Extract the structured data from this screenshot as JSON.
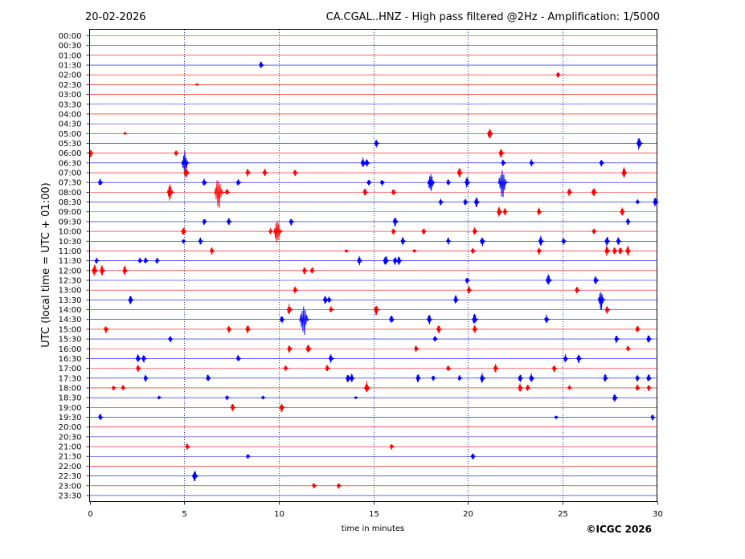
{
  "header": {
    "date": "20-02-2026",
    "title": "CA.CGAL..HNZ - High pass filtered @2Hz - Amplification: 1/5000"
  },
  "footer": {
    "copyright": "©ICGC 2026"
  },
  "colors": {
    "trace_odd": "#ff0000",
    "trace_even": "#0000ff",
    "grid": "#000080",
    "axis": "#000000"
  },
  "chart_data": {
    "type": "line",
    "title": "CA.CGAL..HNZ - High pass filtered @2Hz - Amplification: 1/5000",
    "xlabel": "time in minutes",
    "ylabel": "UTC (local time = UTC + 01:00)",
    "xlim": [
      0,
      30
    ],
    "x_ticks": [
      0,
      5,
      10,
      15,
      20,
      25,
      30
    ],
    "x_tick_labels": [
      "0",
      "5",
      "10",
      "15",
      "20",
      "25",
      "30"
    ],
    "vertical_grid": [
      5,
      10,
      15,
      20,
      25
    ],
    "grid_style": "dotted",
    "row_labels": [
      "00:00",
      "00:30",
      "01:00",
      "01:30",
      "02:00",
      "02:30",
      "03:00",
      "03:30",
      "04:00",
      "04:30",
      "05:00",
      "05:30",
      "06:00",
      "06:30",
      "07:00",
      "07:30",
      "08:00",
      "08:30",
      "09:00",
      "09:30",
      "10:00",
      "10:30",
      "11:00",
      "11:30",
      "12:00",
      "12:30",
      "13:00",
      "13:30",
      "14:00",
      "14:30",
      "15:00",
      "15:30",
      "16:00",
      "16:30",
      "17:00",
      "17:30",
      "18:00",
      "18:30",
      "19:00",
      "19:30",
      "20:00",
      "20:30",
      "21:00",
      "21:30",
      "22:00",
      "22:30",
      "23:00",
      "23:30"
    ],
    "row_colors": [
      "red",
      "red",
      "red",
      "blue",
      "red",
      "red",
      "red",
      "blue",
      "red",
      "blue",
      "red",
      "blue",
      "red",
      "blue",
      "red",
      "blue",
      "red",
      "blue",
      "red",
      "blue",
      "red",
      "blue",
      "red",
      "blue",
      "red",
      "blue",
      "red",
      "blue",
      "red",
      "blue",
      "red",
      "blue",
      "red",
      "blue",
      "red",
      "blue",
      "red",
      "blue",
      "red",
      "blue",
      "red",
      "blue",
      "red",
      "blue",
      "red",
      "blue",
      "red",
      "blue"
    ],
    "events": [
      {
        "row": "01:30",
        "t": 9.1,
        "amp": 0.35
      },
      {
        "row": "02:00",
        "t": 24.8,
        "amp": 0.3
      },
      {
        "row": "02:30",
        "t": 5.7,
        "amp": 0.08
      },
      {
        "row": "05:00",
        "t": 1.9,
        "amp": 0.15
      },
      {
        "row": "05:00",
        "t": 21.2,
        "amp": 0.6
      },
      {
        "row": "05:30",
        "t": 15.2,
        "amp": 0.4
      },
      {
        "row": "05:30",
        "t": 29.1,
        "amp": 0.6
      },
      {
        "row": "06:00",
        "t": 0.1,
        "amp": 0.4
      },
      {
        "row": "06:00",
        "t": 4.6,
        "amp": 0.3
      },
      {
        "row": "06:00",
        "t": 21.8,
        "amp": 0.5
      },
      {
        "row": "06:30",
        "t": 5.1,
        "amp": 1.1
      },
      {
        "row": "06:30",
        "t": 14.5,
        "amp": 0.5
      },
      {
        "row": "06:30",
        "t": 14.7,
        "amp": 0.4
      },
      {
        "row": "06:30",
        "t": 21.9,
        "amp": 0.35
      },
      {
        "row": "06:30",
        "t": 23.4,
        "amp": 0.35
      },
      {
        "row": "06:30",
        "t": 27.1,
        "amp": 0.35
      },
      {
        "row": "07:00",
        "t": 5.15,
        "amp": 0.6
      },
      {
        "row": "07:00",
        "t": 8.4,
        "amp": 0.4
      },
      {
        "row": "07:00",
        "t": 9.3,
        "amp": 0.4
      },
      {
        "row": "07:00",
        "t": 10.9,
        "amp": 0.35
      },
      {
        "row": "07:00",
        "t": 19.6,
        "amp": 0.5
      },
      {
        "row": "07:00",
        "t": 28.3,
        "amp": 0.5
      },
      {
        "row": "07:30",
        "t": 0.6,
        "amp": 0.4
      },
      {
        "row": "07:30",
        "t": 6.1,
        "amp": 0.4
      },
      {
        "row": "07:30",
        "t": 7.9,
        "amp": 0.4
      },
      {
        "row": "07:30",
        "t": 14.8,
        "amp": 0.35
      },
      {
        "row": "07:30",
        "t": 15.5,
        "amp": 0.35
      },
      {
        "row": "07:30",
        "t": 18.1,
        "amp": 1.0
      },
      {
        "row": "07:30",
        "t": 19.0,
        "amp": 0.35
      },
      {
        "row": "07:30",
        "t": 20.0,
        "amp": 0.5
      },
      {
        "row": "07:30",
        "t": 21.9,
        "amp": 1.5
      },
      {
        "row": "08:00",
        "t": 4.3,
        "amp": 0.8
      },
      {
        "row": "08:00",
        "t": 6.9,
        "amp": 1.6
      },
      {
        "row": "08:00",
        "t": 7.3,
        "amp": 0.35
      },
      {
        "row": "08:00",
        "t": 14.6,
        "amp": 0.4
      },
      {
        "row": "08:00",
        "t": 16.1,
        "amp": 0.35
      },
      {
        "row": "08:00",
        "t": 25.4,
        "amp": 0.4
      },
      {
        "row": "08:00",
        "t": 26.7,
        "amp": 0.5
      },
      {
        "row": "08:30",
        "t": 18.6,
        "amp": 0.35
      },
      {
        "row": "08:30",
        "t": 19.9,
        "amp": 0.35
      },
      {
        "row": "08:30",
        "t": 20.5,
        "amp": 0.5
      },
      {
        "row": "08:30",
        "t": 29.0,
        "amp": 0.25
      },
      {
        "row": "08:30",
        "t": 29.95,
        "amp": 0.5
      },
      {
        "row": "09:00",
        "t": 21.7,
        "amp": 0.5
      },
      {
        "row": "09:00",
        "t": 22.0,
        "amp": 0.35
      },
      {
        "row": "09:00",
        "t": 23.8,
        "amp": 0.4
      },
      {
        "row": "09:00",
        "t": 28.2,
        "amp": 0.4
      },
      {
        "row": "09:30",
        "t": 6.1,
        "amp": 0.35
      },
      {
        "row": "09:30",
        "t": 7.4,
        "amp": 0.4
      },
      {
        "row": "09:30",
        "t": 10.7,
        "amp": 0.4
      },
      {
        "row": "09:30",
        "t": 16.2,
        "amp": 0.5
      },
      {
        "row": "09:30",
        "t": 28.5,
        "amp": 0.35
      },
      {
        "row": "10:00",
        "t": 5.0,
        "amp": 0.5
      },
      {
        "row": "10:00",
        "t": 9.6,
        "amp": 0.3
      },
      {
        "row": "10:00",
        "t": 10.0,
        "amp": 1.3
      },
      {
        "row": "10:00",
        "t": 16.1,
        "amp": 0.35
      },
      {
        "row": "10:00",
        "t": 17.7,
        "amp": 0.35
      },
      {
        "row": "10:00",
        "t": 20.4,
        "amp": 0.4
      },
      {
        "row": "10:00",
        "t": 26.7,
        "amp": 0.35
      },
      {
        "row": "10:30",
        "t": 5.0,
        "amp": 0.25
      },
      {
        "row": "10:30",
        "t": 5.9,
        "amp": 0.35
      },
      {
        "row": "10:30",
        "t": 16.6,
        "amp": 0.4
      },
      {
        "row": "10:30",
        "t": 19.0,
        "amp": 0.35
      },
      {
        "row": "10:30",
        "t": 20.8,
        "amp": 0.5
      },
      {
        "row": "10:30",
        "t": 23.9,
        "amp": 0.5
      },
      {
        "row": "10:30",
        "t": 25.1,
        "amp": 0.35
      },
      {
        "row": "10:30",
        "t": 27.4,
        "amp": 0.5
      },
      {
        "row": "10:30",
        "t": 28.0,
        "amp": 0.4
      },
      {
        "row": "11:00",
        "t": 6.5,
        "amp": 0.35
      },
      {
        "row": "11:00",
        "t": 13.6,
        "amp": 0.2
      },
      {
        "row": "11:00",
        "t": 17.2,
        "amp": 0.2
      },
      {
        "row": "11:00",
        "t": 20.3,
        "amp": 0.35
      },
      {
        "row": "11:00",
        "t": 23.8,
        "amp": 0.35
      },
      {
        "row": "11:00",
        "t": 27.4,
        "amp": 0.5
      },
      {
        "row": "11:00",
        "t": 27.8,
        "amp": 0.4
      },
      {
        "row": "11:00",
        "t": 28.1,
        "amp": 0.4
      },
      {
        "row": "11:00",
        "t": 28.5,
        "amp": 0.5
      },
      {
        "row": "11:30",
        "t": 0.4,
        "amp": 0.3
      },
      {
        "row": "11:30",
        "t": 2.7,
        "amp": 0.3
      },
      {
        "row": "11:30",
        "t": 3.0,
        "amp": 0.35
      },
      {
        "row": "11:30",
        "t": 3.6,
        "amp": 0.3
      },
      {
        "row": "11:30",
        "t": 14.3,
        "amp": 0.45
      },
      {
        "row": "11:30",
        "t": 15.7,
        "amp": 0.6
      },
      {
        "row": "11:30",
        "t": 16.2,
        "amp": 0.45
      },
      {
        "row": "11:30",
        "t": 16.4,
        "amp": 0.45
      },
      {
        "row": "12:00",
        "t": 0.3,
        "amp": 0.6
      },
      {
        "row": "12:00",
        "t": 0.7,
        "amp": 0.5
      },
      {
        "row": "12:00",
        "t": 1.9,
        "amp": 0.45
      },
      {
        "row": "12:00",
        "t": 11.4,
        "amp": 0.4
      },
      {
        "row": "12:00",
        "t": 11.8,
        "amp": 0.35
      },
      {
        "row": "12:30",
        "t": 20.0,
        "amp": 0.35
      },
      {
        "row": "12:30",
        "t": 24.3,
        "amp": 0.6
      },
      {
        "row": "12:30",
        "t": 26.8,
        "amp": 0.45
      },
      {
        "row": "13:00",
        "t": 10.9,
        "amp": 0.35
      },
      {
        "row": "13:00",
        "t": 20.1,
        "amp": 0.4
      },
      {
        "row": "13:00",
        "t": 25.8,
        "amp": 0.4
      },
      {
        "row": "13:30",
        "t": 2.2,
        "amp": 0.45
      },
      {
        "row": "13:30",
        "t": 12.5,
        "amp": 0.45
      },
      {
        "row": "13:30",
        "t": 12.7,
        "amp": 0.35
      },
      {
        "row": "13:30",
        "t": 19.4,
        "amp": 0.45
      },
      {
        "row": "13:30",
        "t": 27.1,
        "amp": 0.95
      },
      {
        "row": "14:00",
        "t": 10.6,
        "amp": 0.55
      },
      {
        "row": "14:00",
        "t": 12.8,
        "amp": 0.35
      },
      {
        "row": "14:00",
        "t": 15.2,
        "amp": 0.55
      },
      {
        "row": "14:00",
        "t": 27.4,
        "amp": 0.4
      },
      {
        "row": "14:30",
        "t": 10.2,
        "amp": 0.4
      },
      {
        "row": "14:30",
        "t": 11.4,
        "amp": 1.6
      },
      {
        "row": "14:30",
        "t": 16.0,
        "amp": 0.45
      },
      {
        "row": "14:30",
        "t": 18.0,
        "amp": 0.5
      },
      {
        "row": "14:30",
        "t": 20.4,
        "amp": 0.6
      },
      {
        "row": "14:30",
        "t": 24.2,
        "amp": 0.45
      },
      {
        "row": "15:00",
        "t": 0.9,
        "amp": 0.4
      },
      {
        "row": "15:00",
        "t": 7.4,
        "amp": 0.35
      },
      {
        "row": "15:00",
        "t": 8.4,
        "amp": 0.45
      },
      {
        "row": "15:00",
        "t": 18.5,
        "amp": 0.45
      },
      {
        "row": "15:00",
        "t": 20.4,
        "amp": 0.4
      },
      {
        "row": "15:00",
        "t": 29.0,
        "amp": 0.35
      },
      {
        "row": "15:30",
        "t": 4.3,
        "amp": 0.35
      },
      {
        "row": "15:30",
        "t": 18.3,
        "amp": 0.35
      },
      {
        "row": "15:30",
        "t": 27.9,
        "amp": 0.4
      },
      {
        "row": "15:30",
        "t": 29.6,
        "amp": 0.45
      },
      {
        "row": "16:00",
        "t": 10.6,
        "amp": 0.4
      },
      {
        "row": "16:00",
        "t": 11.6,
        "amp": 0.5
      },
      {
        "row": "16:00",
        "t": 17.3,
        "amp": 0.35
      },
      {
        "row": "16:00",
        "t": 28.5,
        "amp": 0.3
      },
      {
        "row": "16:30",
        "t": 2.6,
        "amp": 0.45
      },
      {
        "row": "16:30",
        "t": 2.9,
        "amp": 0.4
      },
      {
        "row": "16:30",
        "t": 7.9,
        "amp": 0.35
      },
      {
        "row": "16:30",
        "t": 12.8,
        "amp": 0.45
      },
      {
        "row": "16:30",
        "t": 25.2,
        "amp": 0.4
      },
      {
        "row": "16:30",
        "t": 25.9,
        "amp": 0.45
      },
      {
        "row": "17:00",
        "t": 2.6,
        "amp": 0.35
      },
      {
        "row": "17:00",
        "t": 10.4,
        "amp": 0.3
      },
      {
        "row": "17:00",
        "t": 12.6,
        "amp": 0.4
      },
      {
        "row": "17:00",
        "t": 19.0,
        "amp": 0.35
      },
      {
        "row": "17:00",
        "t": 21.5,
        "amp": 0.4
      },
      {
        "row": "17:00",
        "t": 24.6,
        "amp": 0.35
      },
      {
        "row": "17:30",
        "t": 3.0,
        "amp": 0.35
      },
      {
        "row": "17:30",
        "t": 6.3,
        "amp": 0.4
      },
      {
        "row": "17:30",
        "t": 13.7,
        "amp": 0.45
      },
      {
        "row": "17:30",
        "t": 13.9,
        "amp": 0.4
      },
      {
        "row": "17:30",
        "t": 17.4,
        "amp": 0.4
      },
      {
        "row": "17:30",
        "t": 18.2,
        "amp": 0.3
      },
      {
        "row": "17:30",
        "t": 19.6,
        "amp": 0.3
      },
      {
        "row": "17:30",
        "t": 20.8,
        "amp": 0.5
      },
      {
        "row": "17:30",
        "t": 22.8,
        "amp": 0.4
      },
      {
        "row": "17:30",
        "t": 23.4,
        "amp": 0.45
      },
      {
        "row": "17:30",
        "t": 27.3,
        "amp": 0.4
      },
      {
        "row": "17:30",
        "t": 29.0,
        "amp": 0.35
      },
      {
        "row": "17:30",
        "t": 29.6,
        "amp": 0.45
      },
      {
        "row": "18:00",
        "t": 1.3,
        "amp": 0.25
      },
      {
        "row": "18:00",
        "t": 1.8,
        "amp": 0.3
      },
      {
        "row": "18:00",
        "t": 14.7,
        "amp": 0.6
      },
      {
        "row": "18:00",
        "t": 22.8,
        "amp": 0.4
      },
      {
        "row": "18:00",
        "t": 23.2,
        "amp": 0.35
      },
      {
        "row": "18:00",
        "t": 25.4,
        "amp": 0.25
      },
      {
        "row": "18:00",
        "t": 29.0,
        "amp": 0.35
      },
      {
        "row": "18:00",
        "t": 29.6,
        "amp": 0.3
      },
      {
        "row": "18:30",
        "t": 3.7,
        "amp": 0.2
      },
      {
        "row": "18:30",
        "t": 7.3,
        "amp": 0.25
      },
      {
        "row": "18:30",
        "t": 9.2,
        "amp": 0.2
      },
      {
        "row": "18:30",
        "t": 14.1,
        "amp": 0.15
      },
      {
        "row": "18:30",
        "t": 27.8,
        "amp": 0.45
      },
      {
        "row": "19:00",
        "t": 7.6,
        "amp": 0.4
      },
      {
        "row": "19:00",
        "t": 10.2,
        "amp": 0.45
      },
      {
        "row": "19:30",
        "t": 0.6,
        "amp": 0.35
      },
      {
        "row": "19:30",
        "t": 24.7,
        "amp": 0.2
      },
      {
        "row": "19:30",
        "t": 29.8,
        "amp": 0.3
      },
      {
        "row": "21:00",
        "t": 5.2,
        "amp": 0.35
      },
      {
        "row": "21:00",
        "t": 16.0,
        "amp": 0.3
      },
      {
        "row": "21:30",
        "t": 8.4,
        "amp": 0.25
      },
      {
        "row": "21:30",
        "t": 20.3,
        "amp": 0.35
      },
      {
        "row": "22:30",
        "t": 5.6,
        "amp": 0.6
      },
      {
        "row": "23:00",
        "t": 11.9,
        "amp": 0.3
      },
      {
        "row": "23:00",
        "t": 13.2,
        "amp": 0.3
      }
    ]
  }
}
